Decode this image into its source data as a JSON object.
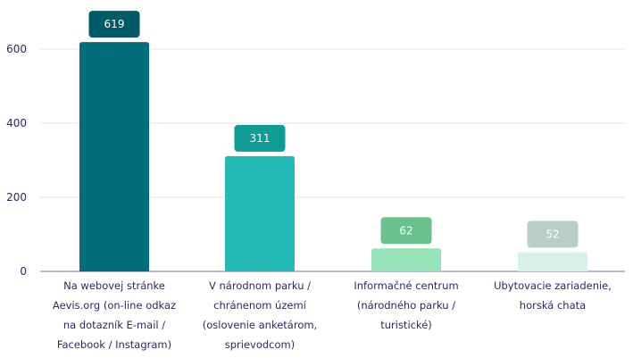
{
  "chart_data": {
    "type": "bar",
    "categories": [
      "Na webovej stránke Aevis.org (on-line odkaz na dotazník E-mail / Facebook / Instagram)",
      "V národnom parku / chránenom území (oslovenie anketárom, sprievodcom)",
      "Informačné centrum (národného parku / turistické)",
      "Ubytovacie zariadenie, horská chata"
    ],
    "category_lines": [
      [
        "Na webovej stránke",
        "Aevis.org (on-line odkaz",
        "na dotazník E-mail /",
        "Facebook / Instagram)"
      ],
      [
        "V národnom parku /",
        "chránenom území",
        "(oslovenie anketárom,",
        "sprievodcom)"
      ],
      [
        "Informačné centrum",
        "(národného parku /",
        "turistické)"
      ],
      [
        "Ubytovacie zariadenie,",
        "horská chata"
      ]
    ],
    "values": [
      619,
      311,
      62,
      52
    ],
    "bar_colors": [
      "#006e7c",
      "#25b9b6",
      "#95e3b9",
      "#d8f1e7"
    ],
    "label_colors": [
      "#005a67",
      "#0e9c95",
      "#6cc28d",
      "#b9cfc6"
    ],
    "ylim": [
      0,
      700
    ],
    "yticks": [
      0,
      200,
      400,
      600
    ],
    "title": "",
    "xlabel": "",
    "ylabel": "",
    "grid": true,
    "legend": "none"
  }
}
